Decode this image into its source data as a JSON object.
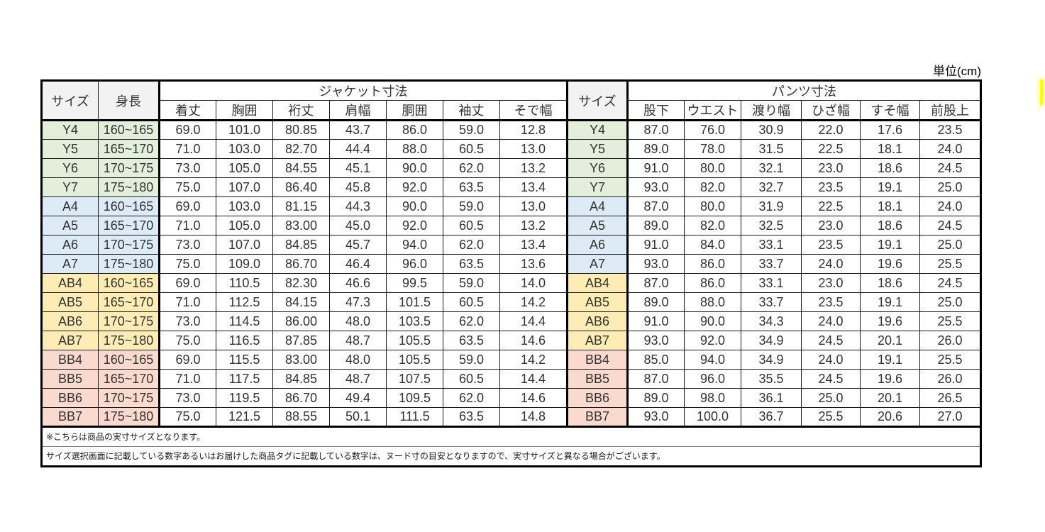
{
  "unit_label": "単位(cm)",
  "table": {
    "size_header": "サイズ",
    "height_header": "身長",
    "jacket_section_title": "ジャケット寸法",
    "jacket_columns": [
      "着丈",
      "胸囲",
      "裄丈",
      "肩幅",
      "胴囲",
      "袖丈",
      "そで幅"
    ],
    "pants_section_title": "パンツ寸法",
    "pants_columns": [
      "股下",
      "ウエスト",
      "渡り幅",
      "ひざ幅",
      "すそ幅",
      "前股上"
    ],
    "rows": [
      {
        "size": "Y4",
        "group": "Y",
        "height": "160~165",
        "jacket": [
          "69.0",
          "101.0",
          "80.85",
          "43.7",
          "86.0",
          "59.0",
          "12.8"
        ],
        "pants": [
          "87.0",
          "76.0",
          "30.9",
          "22.0",
          "17.6",
          "23.5"
        ]
      },
      {
        "size": "Y5",
        "group": "Y",
        "height": "165~170",
        "jacket": [
          "71.0",
          "103.0",
          "82.70",
          "44.4",
          "88.0",
          "60.5",
          "13.0"
        ],
        "pants": [
          "89.0",
          "78.0",
          "31.5",
          "22.5",
          "18.1",
          "24.0"
        ]
      },
      {
        "size": "Y6",
        "group": "Y",
        "height": "170~175",
        "jacket": [
          "73.0",
          "105.0",
          "84.55",
          "45.1",
          "90.0",
          "62.0",
          "13.2"
        ],
        "pants": [
          "91.0",
          "80.0",
          "32.1",
          "23.0",
          "18.6",
          "24.5"
        ]
      },
      {
        "size": "Y7",
        "group": "Y",
        "height": "175~180",
        "jacket": [
          "75.0",
          "107.0",
          "86.40",
          "45.8",
          "92.0",
          "63.5",
          "13.4"
        ],
        "pants": [
          "93.0",
          "82.0",
          "32.7",
          "23.5",
          "19.1",
          "25.0"
        ]
      },
      {
        "size": "A4",
        "group": "A",
        "height": "160~165",
        "jacket": [
          "69.0",
          "103.0",
          "81.15",
          "44.3",
          "90.0",
          "59.0",
          "13.0"
        ],
        "pants": [
          "87.0",
          "80.0",
          "31.9",
          "22.5",
          "18.1",
          "24.0"
        ]
      },
      {
        "size": "A5",
        "group": "A",
        "height": "165~170",
        "jacket": [
          "71.0",
          "105.0",
          "83.00",
          "45.0",
          "92.0",
          "60.5",
          "13.2"
        ],
        "pants": [
          "89.0",
          "82.0",
          "32.5",
          "23.0",
          "18.6",
          "24.5"
        ]
      },
      {
        "size": "A6",
        "group": "A",
        "height": "170~175",
        "jacket": [
          "73.0",
          "107.0",
          "84.85",
          "45.7",
          "94.0",
          "62.0",
          "13.4"
        ],
        "pants": [
          "91.0",
          "84.0",
          "33.1",
          "23.5",
          "19.1",
          "25.0"
        ]
      },
      {
        "size": "A7",
        "group": "A",
        "height": "175~180",
        "jacket": [
          "75.0",
          "109.0",
          "86.70",
          "46.4",
          "96.0",
          "63.5",
          "13.6"
        ],
        "pants": [
          "93.0",
          "86.0",
          "33.7",
          "24.0",
          "19.6",
          "25.5"
        ]
      },
      {
        "size": "AB4",
        "group": "AB",
        "height": "160~165",
        "jacket": [
          "69.0",
          "110.5",
          "82.30",
          "46.6",
          "99.5",
          "59.0",
          "14.0"
        ],
        "pants": [
          "87.0",
          "86.0",
          "33.1",
          "23.0",
          "18.6",
          "24.5"
        ]
      },
      {
        "size": "AB5",
        "group": "AB",
        "height": "165~170",
        "jacket": [
          "71.0",
          "112.5",
          "84.15",
          "47.3",
          "101.5",
          "60.5",
          "14.2"
        ],
        "pants": [
          "89.0",
          "88.0",
          "33.7",
          "23.5",
          "19.1",
          "25.0"
        ]
      },
      {
        "size": "AB6",
        "group": "AB",
        "height": "170~175",
        "jacket": [
          "73.0",
          "114.5",
          "86.00",
          "48.0",
          "103.5",
          "62.0",
          "14.4"
        ],
        "pants": [
          "91.0",
          "90.0",
          "34.3",
          "24.0",
          "19.6",
          "25.5"
        ]
      },
      {
        "size": "AB7",
        "group": "AB",
        "height": "175~180",
        "jacket": [
          "75.0",
          "116.5",
          "87.85",
          "48.7",
          "105.5",
          "63.5",
          "14.6"
        ],
        "pants": [
          "93.0",
          "92.0",
          "34.9",
          "24.5",
          "20.1",
          "26.0"
        ]
      },
      {
        "size": "BB4",
        "group": "BB",
        "height": "160~165",
        "jacket": [
          "69.0",
          "115.5",
          "83.00",
          "48.0",
          "105.5",
          "59.0",
          "14.2"
        ],
        "pants": [
          "85.0",
          "94.0",
          "34.9",
          "24.0",
          "19.1",
          "25.5"
        ]
      },
      {
        "size": "BB5",
        "group": "BB",
        "height": "165~170",
        "jacket": [
          "71.0",
          "117.5",
          "84.85",
          "48.7",
          "107.5",
          "60.5",
          "14.4"
        ],
        "pants": [
          "87.0",
          "96.0",
          "35.5",
          "24.5",
          "19.6",
          "26.0"
        ]
      },
      {
        "size": "BB6",
        "group": "BB",
        "height": "170~175",
        "jacket": [
          "73.0",
          "119.5",
          "86.70",
          "49.4",
          "109.5",
          "62.0",
          "14.6"
        ],
        "pants": [
          "89.0",
          "98.0",
          "36.1",
          "25.0",
          "20.1",
          "26.5"
        ]
      },
      {
        "size": "BB7",
        "group": "BB",
        "height": "175~180",
        "jacket": [
          "75.0",
          "121.5",
          "88.55",
          "50.1",
          "111.5",
          "63.5",
          "14.8"
        ],
        "pants": [
          "93.0",
          "100.0",
          "36.7",
          "25.5",
          "20.6",
          "27.0"
        ]
      }
    ]
  },
  "notes": [
    "※こちらは商品の実寸サイズとなります。",
    "サイズ選択画面に記載している数字あるいはお届けした商品タグに記載している数字は、ヌード寸の目安となりますので、実寸サイズと異なる場合がございます。"
  ],
  "colors": {
    "group_Y": "#e2efda",
    "group_A": "#ddebf7",
    "group_AB": "#fdecb4",
    "group_BB": "#fadace",
    "header_bg": "#f2f2f2",
    "highlight": "#ffff00"
  }
}
